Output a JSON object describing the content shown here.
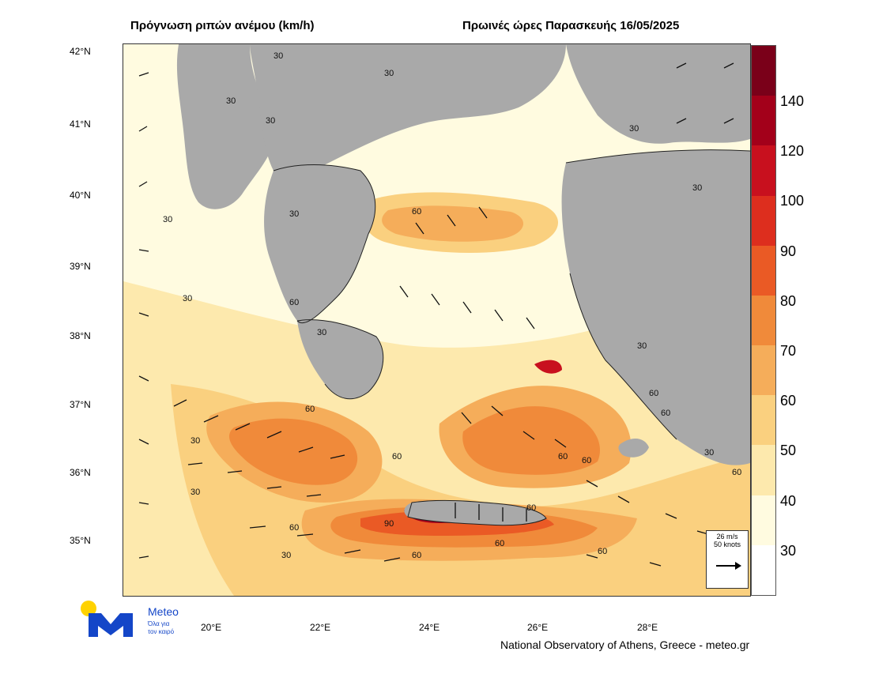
{
  "title_left": "Πρόγνωση ριπών ανέμου (km/h)",
  "title_right": "Πρωινές ώρες Παρασκευής 16/05/2025",
  "lat_labels": [
    "42°N",
    "41°N",
    "40°N",
    "39°N",
    "38°N",
    "37°N",
    "36°N",
    "35°N"
  ],
  "lon_labels": [
    "20°E",
    "22°E",
    "24°E",
    "26°E",
    "28°E"
  ],
  "colorbar": {
    "labels": [
      "140",
      "120",
      "100",
      "90",
      "80",
      "70",
      "60",
      "50",
      "40",
      "30"
    ],
    "colors": [
      "#7a0019",
      "#a3001a",
      "#c8101e",
      "#dd2e1e",
      "#ea5a25",
      "#f08a3a",
      "#f5ad5a",
      "#fad07f",
      "#fde9ad",
      "#fffbe0",
      "#ffffff"
    ]
  },
  "vector_key": {
    "speed": "26 m/s",
    "knots": "50 knots"
  },
  "logo": {
    "name": "Meteo",
    "tagline_1": "Όλα για",
    "tagline_2": "τον καιρό"
  },
  "footer": "National Observatory of Athens, Greece - meteo.gr",
  "contour_labels": [
    "30",
    "60"
  ],
  "land_color": "#a9a9a9"
}
